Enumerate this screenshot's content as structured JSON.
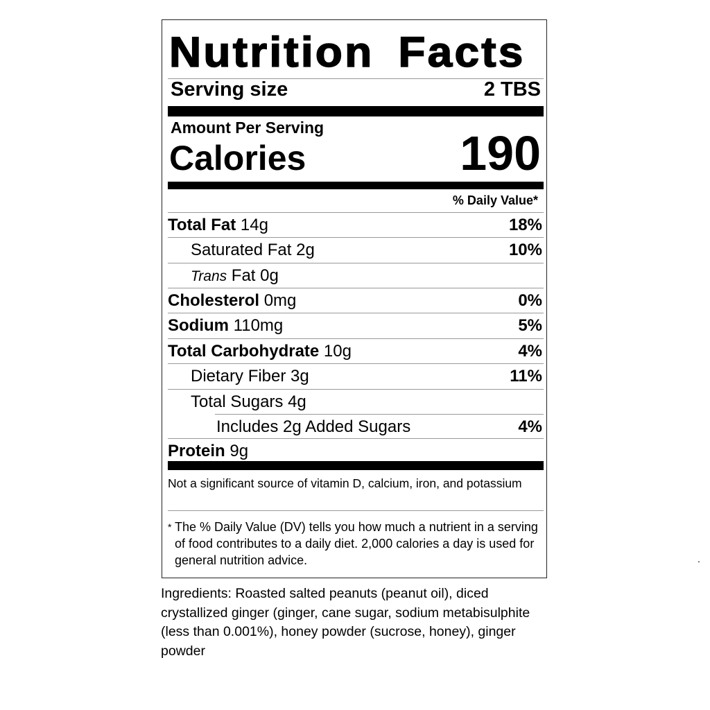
{
  "label": {
    "title": "Nutrition Facts",
    "serving_size_label": "Serving size",
    "serving_size_value": "2 TBS",
    "amount_per_serving": "Amount Per Serving",
    "calories_label": "Calories",
    "calories_value": "190",
    "daily_value_header": "% Daily Value*",
    "nutrients": [
      {
        "name": "Total Fat",
        "amount": "14g",
        "dv": "18%",
        "bold": true
      },
      {
        "name": "Saturated Fat",
        "amount": "2g",
        "dv": "10%",
        "bold": false
      },
      {
        "name_italic": "Trans",
        "name": "Fat",
        "amount": "0g",
        "dv": "",
        "bold": false
      },
      {
        "name": "Cholesterol",
        "amount": "0mg",
        "dv": "0%",
        "bold": true
      },
      {
        "name": "Sodium",
        "amount": "110mg",
        "dv": "5%",
        "bold": true
      },
      {
        "name": "Total Carbohydrate",
        "amount": "10g",
        "dv": "4%",
        "bold": true
      },
      {
        "name": "Dietary Fiber",
        "amount": "3g",
        "dv": "11%",
        "bold": false
      },
      {
        "name": "Total Sugars",
        "amount": "4g",
        "dv": "",
        "bold": false
      },
      {
        "name": "Includes 2g Added Sugars",
        "amount": "",
        "dv": "4%",
        "bold": false
      },
      {
        "name": "Protein",
        "amount": "9g",
        "dv": "",
        "bold": true
      }
    ],
    "vitamins_note": "Not a significant source of vitamin D, calcium, iron, and potassium",
    "footnote_star": "*",
    "footnote": "The % Daily Value (DV) tells you how much a nutrient in a serving of food contributes to a daily diet. 2,000 calories a day is used for general nutrition advice."
  },
  "ingredients": "Ingredients: Roasted salted peanuts (peanut oil), diced crystallized ginger (ginger, cane sugar, sodium metabisulphite (less than 0.001%), honey powder (sucrose, honey), ginger powder",
  "stray_mark": "."
}
